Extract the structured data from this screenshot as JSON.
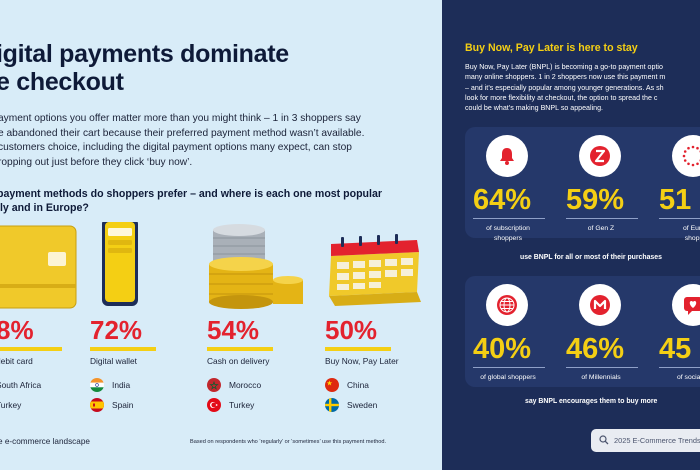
{
  "left": {
    "title": "igital payments dominate\ne checkout",
    "intro": "ayment options you offer matter more than you might think – 1 in 3 shoppers say\ne abandoned their cart because their preferred payment method wasn’t available.\ncustomers choice, including the digital payment options many expect, can stop\nropping out just before they click ‘buy now’.",
    "question": "payment methods do shoppers prefer – and where is each one most popular\nlly and in Europe?",
    "methods": [
      {
        "pct": "8%",
        "label": "debit card",
        "countries": [
          "South Africa",
          "Turkey"
        ]
      },
      {
        "pct": "72%",
        "label": "Digital wallet",
        "countries": [
          "India",
          "Spain"
        ]
      },
      {
        "pct": "54%",
        "label": "Cash on delivery",
        "countries": [
          "Morocco",
          "Turkey"
        ]
      },
      {
        "pct": "50%",
        "label": "Buy Now, Pay Later",
        "countries": [
          "China",
          "Sweden"
        ]
      }
    ],
    "footer": "e e-commerce landscape",
    "footnote": "Based on respondents who ‘regularly’ or ‘sometimes’ use this payment method."
  },
  "right": {
    "title": "Buy Now, Pay Later is here to stay",
    "body": "Buy Now, Pay Later (BNPL) is becoming a go-to payment optio\nmany online shoppers. 1 in 2 shoppers now use this payment m\n– and it’s especially popular among younger generations. As sh\nlook for more flexibility at checkout, the option to spread the c\ncould be what’s making BNPL so appealing.",
    "card1": {
      "stats": [
        {
          "value": "64%",
          "caption": "of subscription\nshoppers",
          "icon": "bell-icon"
        },
        {
          "value": "59%",
          "caption": "of Gen Z",
          "icon": "z-icon"
        },
        {
          "value": "51",
          "caption": "of Euro\nshopp",
          "icon": "eu-stars-icon"
        }
      ],
      "subtitle": "use BNPL for all or most of their purchases"
    },
    "card2": {
      "stats": [
        {
          "value": "40%",
          "caption": "of global shoppers",
          "icon": "globe-icon"
        },
        {
          "value": "46%",
          "caption": "of Millennials",
          "icon": "m-icon"
        },
        {
          "value": "45",
          "caption": "of social sh",
          "icon": "heart-icon"
        }
      ],
      "subtitle": "say BNPL encourages them to buy more"
    },
    "search_placeholder": "2025 E-Commerce Trends"
  },
  "colors": {
    "navy": "#1d2d58",
    "yellow": "#f4cf14",
    "red": "#e3222e",
    "sky": "#d8ecf8"
  }
}
